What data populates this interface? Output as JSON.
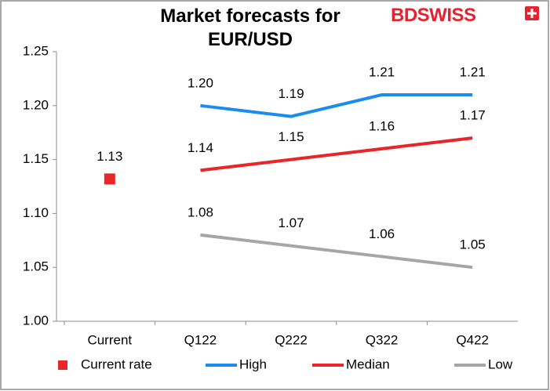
{
  "logo": "BDSWISS",
  "chart_data": {
    "type": "line",
    "title": "Market forecasts for EUR/USD",
    "categories": [
      "Current",
      "Q122",
      "Q222",
      "Q322",
      "Q422"
    ],
    "series": [
      {
        "name": "Current rate",
        "color": "#e8262a",
        "marker": "square",
        "values": [
          1.132,
          null,
          null,
          null,
          null
        ],
        "value_labels": [
          "1.13",
          null,
          null,
          null,
          null
        ]
      },
      {
        "name": "High",
        "color": "#1a8cf0",
        "values": [
          null,
          1.2,
          1.19,
          1.21,
          1.21
        ],
        "value_labels": [
          null,
          "1.20",
          "1.19",
          "1.21",
          "1.21"
        ]
      },
      {
        "name": "Median",
        "color": "#e8262a",
        "values": [
          null,
          1.14,
          1.15,
          1.16,
          1.17
        ],
        "value_labels": [
          null,
          "1.14",
          "1.15",
          "1.16",
          "1.17"
        ]
      },
      {
        "name": "Low",
        "color": "#a6a6a6",
        "values": [
          null,
          1.08,
          1.07,
          1.06,
          1.05
        ],
        "value_labels": [
          null,
          "1.08",
          "1.07",
          "1.06",
          "1.05"
        ]
      }
    ],
    "ylim": [
      1.0,
      1.25
    ],
    "yticks": [
      {
        "value": 1.0,
        "label": "1.00"
      },
      1.05,
      {
        "value": 1.1,
        "label": "1.10"
      },
      1.15,
      {
        "value": 1.2,
        "label": "1.20"
      },
      1.25
    ],
    "grid": false,
    "legend": "bottom"
  }
}
